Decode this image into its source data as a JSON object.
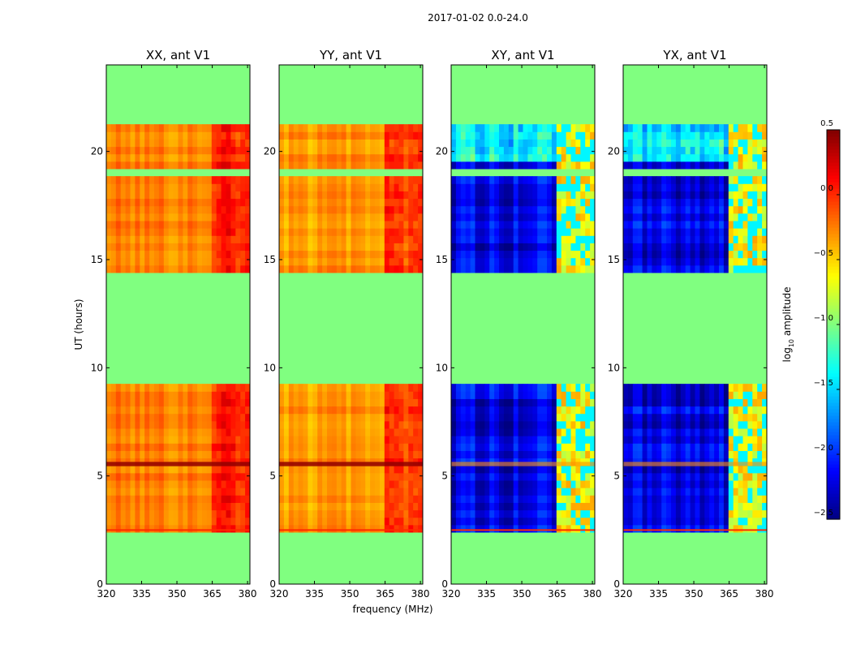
{
  "chart_data": {
    "type": "heatmap",
    "suptitle": "2017-01-02 0.0-24.0",
    "panels": [
      {
        "title": "XX, ant V1",
        "kind": "auto",
        "variant": "xx"
      },
      {
        "title": "YY, ant V1",
        "kind": "auto",
        "variant": "yy"
      },
      {
        "title": "XY, ant V1",
        "kind": "cross",
        "variant": "xy"
      },
      {
        "title": "YX, ant V1",
        "kind": "cross",
        "variant": "yx"
      }
    ],
    "xlabel": "frequency (MHz)",
    "ylabel": "UT (hours)",
    "xlim": [
      320,
      381
    ],
    "ylim": [
      0,
      24
    ],
    "xticks": [
      320,
      335,
      350,
      365,
      380
    ],
    "xtick_labels": [
      "320",
      "335",
      "350",
      "365",
      "380"
    ],
    "yticks": [
      0,
      5,
      10,
      15,
      20
    ],
    "ytick_labels": [
      "0",
      "5",
      "10",
      "15",
      "20"
    ],
    "data_blocks_ut": [
      [
        2.5,
        9.2
      ],
      [
        14.4,
        21.1
      ]
    ],
    "gap_ut_in_block2": [
      19.0,
      19.3
    ],
    "strong_band_ut": [
      5.45,
      5.65
    ],
    "rfi_band_mhz": [
      364,
      380
    ],
    "colorbar": {
      "label": "log10 amplitude",
      "label_main": "log",
      "label_sub": "10",
      "label_tail": " amplitude",
      "vmin": -2.5,
      "vmax": 0.5,
      "ticks": [
        0.5,
        0.0,
        -0.5,
        -1.0,
        -1.5,
        -2.0,
        -2.5
      ],
      "tick_labels": [
        "0.5",
        "0.0",
        "−0.5",
        "−1.0",
        "−1.5",
        "−2.0",
        "−2.5"
      ],
      "colormap": "jet"
    }
  }
}
